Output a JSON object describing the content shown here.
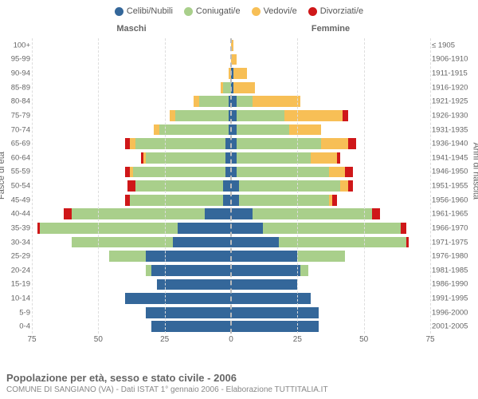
{
  "legend": [
    {
      "label": "Celibi/Nubili",
      "color": "#34679a"
    },
    {
      "label": "Coniugati/e",
      "color": "#a9cf8b"
    },
    {
      "label": "Vedovi/e",
      "color": "#f7bf56"
    },
    {
      "label": "Divorziati/e",
      "color": "#cf1719"
    }
  ],
  "headers": {
    "male": "Maschi",
    "female": "Femmine"
  },
  "axis_titles": {
    "left": "Fasce di età",
    "right": "Anni di nascita"
  },
  "x_axis": {
    "max": 75,
    "ticks": [
      75,
      50,
      25,
      0,
      25,
      50,
      75
    ]
  },
  "colors": {
    "celibi": "#34679a",
    "coniugati": "#a9cf8b",
    "vedovi": "#f7bf56",
    "divorziati": "#cf1719",
    "grid": "#dddddd",
    "center": "#bbbbbb",
    "text": "#656565",
    "background": "#ffffff"
  },
  "rows": [
    {
      "age": "100+",
      "birth": "≤ 1905",
      "m": [
        0,
        0,
        0,
        0
      ],
      "f": [
        0,
        0,
        1,
        0
      ]
    },
    {
      "age": "95-99",
      "birth": "1906-1910",
      "m": [
        0,
        0,
        0,
        0
      ],
      "f": [
        0,
        0,
        2,
        0
      ]
    },
    {
      "age": "90-94",
      "birth": "1911-1915",
      "m": [
        0,
        0,
        1,
        0
      ],
      "f": [
        1,
        0,
        5,
        0
      ]
    },
    {
      "age": "85-89",
      "birth": "1916-1920",
      "m": [
        0,
        3,
        1,
        0
      ],
      "f": [
        1,
        0,
        8,
        0
      ]
    },
    {
      "age": "80-84",
      "birth": "1921-1925",
      "m": [
        1,
        11,
        2,
        0
      ],
      "f": [
        2,
        6,
        18,
        0
      ]
    },
    {
      "age": "75-79",
      "birth": "1926-1930",
      "m": [
        1,
        20,
        2,
        0
      ],
      "f": [
        2,
        18,
        22,
        2
      ]
    },
    {
      "age": "70-74",
      "birth": "1931-1935",
      "m": [
        1,
        26,
        2,
        0
      ],
      "f": [
        2,
        20,
        12,
        0
      ]
    },
    {
      "age": "65-69",
      "birth": "1936-1940",
      "m": [
        2,
        34,
        2,
        2
      ],
      "f": [
        2,
        32,
        10,
        3
      ]
    },
    {
      "age": "60-64",
      "birth": "1941-1945",
      "m": [
        2,
        30,
        1,
        1
      ],
      "f": [
        2,
        28,
        10,
        1
      ]
    },
    {
      "age": "55-59",
      "birth": "1946-1950",
      "m": [
        2,
        35,
        1,
        2
      ],
      "f": [
        2,
        35,
        6,
        3
      ]
    },
    {
      "age": "50-54",
      "birth": "1951-1955",
      "m": [
        3,
        33,
        0,
        3
      ],
      "f": [
        3,
        38,
        3,
        2
      ]
    },
    {
      "age": "45-49",
      "birth": "1956-1960",
      "m": [
        3,
        35,
        0,
        2
      ],
      "f": [
        3,
        34,
        1,
        2
      ]
    },
    {
      "age": "40-44",
      "birth": "1961-1965",
      "m": [
        10,
        50,
        0,
        3
      ],
      "f": [
        8,
        45,
        0,
        3
      ]
    },
    {
      "age": "35-39",
      "birth": "1966-1970",
      "m": [
        20,
        52,
        0,
        1
      ],
      "f": [
        12,
        52,
        0,
        2
      ]
    },
    {
      "age": "30-34",
      "birth": "1971-1975",
      "m": [
        22,
        38,
        0,
        0
      ],
      "f": [
        18,
        48,
        0,
        1
      ]
    },
    {
      "age": "25-29",
      "birth": "1976-1980",
      "m": [
        32,
        14,
        0,
        0
      ],
      "f": [
        25,
        18,
        0,
        0
      ]
    },
    {
      "age": "20-24",
      "birth": "1981-1985",
      "m": [
        30,
        2,
        0,
        0
      ],
      "f": [
        26,
        3,
        0,
        0
      ]
    },
    {
      "age": "15-19",
      "birth": "1986-1990",
      "m": [
        28,
        0,
        0,
        0
      ],
      "f": [
        25,
        0,
        0,
        0
      ]
    },
    {
      "age": "10-14",
      "birth": "1991-1995",
      "m": [
        40,
        0,
        0,
        0
      ],
      "f": [
        30,
        0,
        0,
        0
      ]
    },
    {
      "age": "5-9",
      "birth": "1996-2000",
      "m": [
        32,
        0,
        0,
        0
      ],
      "f": [
        33,
        0,
        0,
        0
      ]
    },
    {
      "age": "0-4",
      "birth": "2001-2005",
      "m": [
        30,
        0,
        0,
        0
      ],
      "f": [
        33,
        0,
        0,
        0
      ]
    }
  ],
  "footer": {
    "title": "Popolazione per età, sesso e stato civile - 2006",
    "subtitle": "COMUNE DI SANGIANO (VA) - Dati ISTAT 1° gennaio 2006 - Elaborazione TUTTITALIA.IT"
  }
}
